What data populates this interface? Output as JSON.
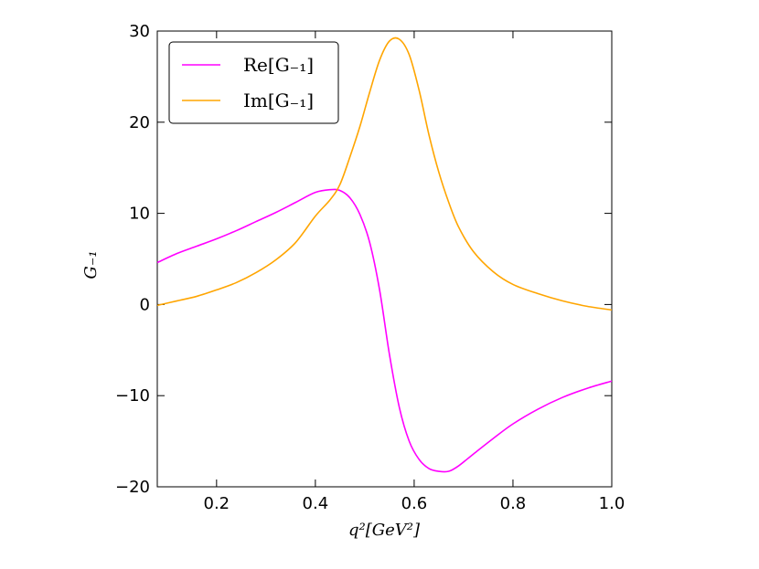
{
  "chart_data": {
    "type": "line",
    "xlabel": "q²[GeV²]",
    "ylabel": "G₋₁",
    "xlim": [
      0.08,
      1.0
    ],
    "ylim": [
      -20,
      30
    ],
    "xticks": [
      0.2,
      0.4,
      0.6,
      0.8,
      1.0
    ],
    "xtick_labels": [
      "0.2",
      "0.4",
      "0.6",
      "0.8",
      "1.0"
    ],
    "yticks": [
      -20,
      -10,
      0,
      10,
      20,
      30
    ],
    "ytick_labels": [
      "−20",
      "−10",
      "0",
      "10",
      "20",
      "30"
    ],
    "grid": false,
    "legend_position": "top-left",
    "series": [
      {
        "name": "Re[G₋₁]",
        "color": "#ff00ff",
        "x": [
          0.08,
          0.12,
          0.16,
          0.2,
          0.24,
          0.28,
          0.32,
          0.36,
          0.4,
          0.43,
          0.45,
          0.47,
          0.49,
          0.51,
          0.53,
          0.55,
          0.57,
          0.59,
          0.61,
          0.63,
          0.65,
          0.67,
          0.69,
          0.72,
          0.76,
          0.8,
          0.85,
          0.9,
          0.95,
          1.0
        ],
        "values": [
          4.6,
          5.6,
          6.4,
          7.2,
          8.1,
          9.1,
          10.1,
          11.2,
          12.3,
          12.6,
          12.5,
          11.7,
          9.9,
          6.8,
          1.6,
          -5.5,
          -11.3,
          -15.0,
          -17.0,
          -18.0,
          -18.3,
          -18.3,
          -17.7,
          -16.4,
          -14.7,
          -13.1,
          -11.5,
          -10.2,
          -9.2,
          -8.4
        ]
      },
      {
        "name": "Im[G₋₁]",
        "color": "#ffa500",
        "x": [
          0.08,
          0.12,
          0.16,
          0.2,
          0.24,
          0.28,
          0.32,
          0.36,
          0.4,
          0.43,
          0.45,
          0.47,
          0.49,
          0.51,
          0.53,
          0.55,
          0.57,
          0.59,
          0.61,
          0.63,
          0.65,
          0.67,
          0.69,
          0.72,
          0.76,
          0.8,
          0.85,
          0.9,
          0.95,
          1.0
        ],
        "values": [
          -0.1,
          0.4,
          0.9,
          1.6,
          2.4,
          3.5,
          4.9,
          6.8,
          9.7,
          11.5,
          13.2,
          16.2,
          19.5,
          23.3,
          26.8,
          28.9,
          29.1,
          27.4,
          23.5,
          18.6,
          14.5,
          11.2,
          8.5,
          5.8,
          3.6,
          2.2,
          1.2,
          0.4,
          -0.2,
          -0.6
        ]
      }
    ]
  }
}
